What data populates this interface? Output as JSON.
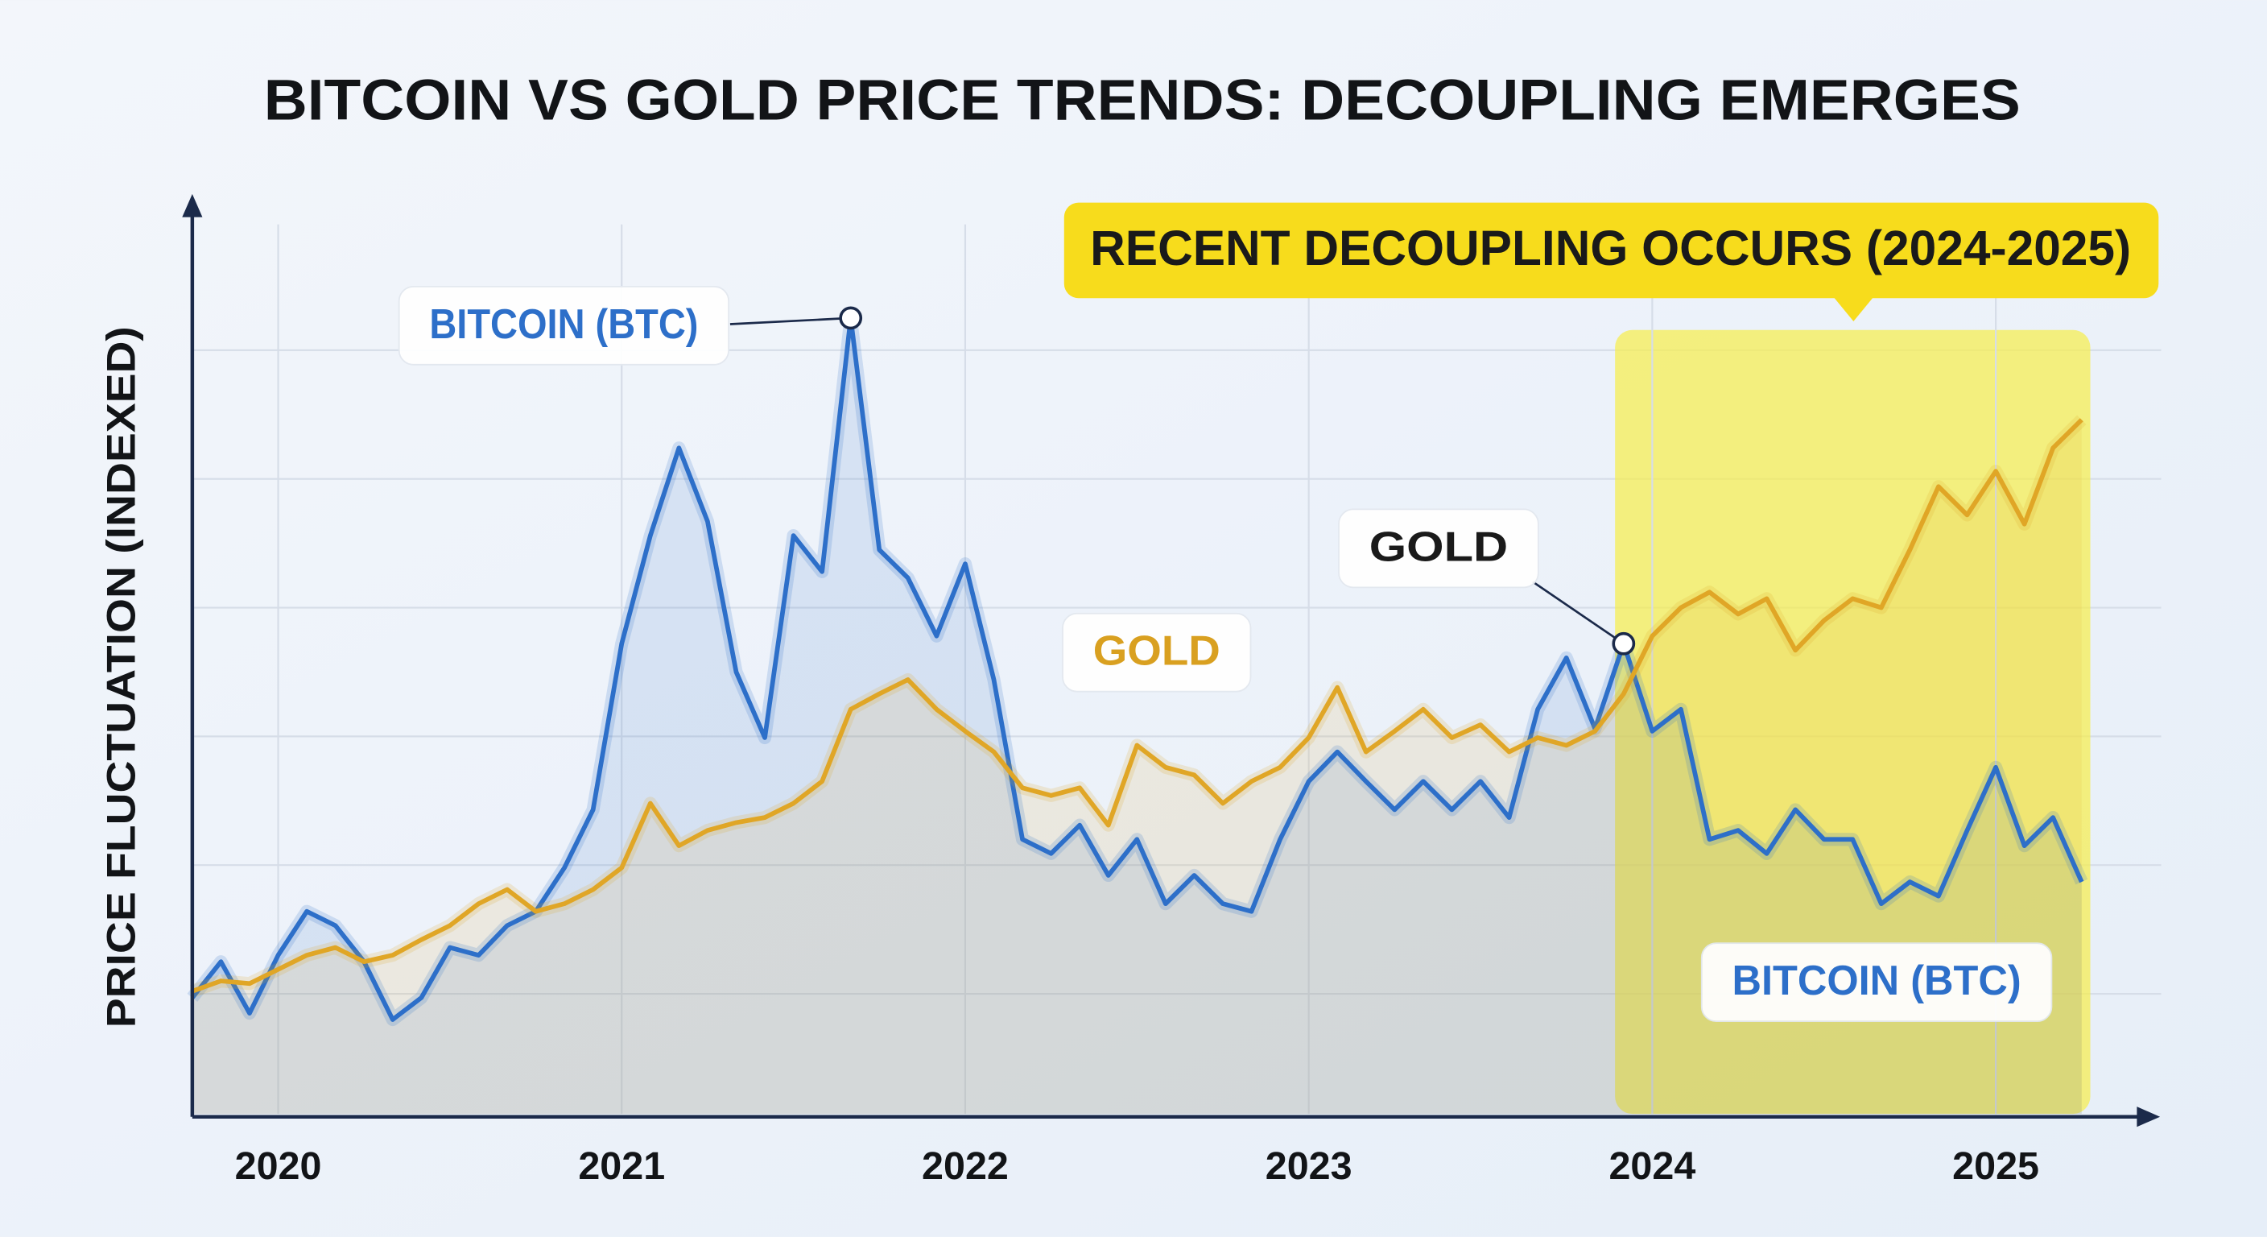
{
  "chart_data": {
    "type": "line",
    "title": "BITCOIN VS GOLD PRICE TRENDS: DECOUPLING EMERGES",
    "y_label": "PRICE FLUCTUATION (INDEXED)",
    "annotation": "RECENT DECOUPLING OCCURS (2024-2025)",
    "categories": [
      null,
      null,
      null,
      "2020",
      null,
      null,
      null,
      null,
      null,
      null,
      null,
      null,
      null,
      null,
      null,
      "2021",
      null,
      null,
      null,
      null,
      null,
      null,
      null,
      null,
      null,
      null,
      null,
      "2022",
      null,
      null,
      null,
      null,
      null,
      null,
      null,
      null,
      null,
      null,
      null,
      "2023",
      null,
      null,
      null,
      null,
      null,
      null,
      null,
      null,
      null,
      null,
      null,
      "2024",
      null,
      null,
      null,
      null,
      null,
      null,
      null,
      null,
      null,
      null,
      null,
      "2025",
      null,
      null,
      null
    ],
    "series": [
      {
        "name": "BITCOIN (BTC)",
        "color": "#2d6fc9",
        "values": [
          9.7,
          12.5,
          8.5,
          13,
          16.4,
          15.3,
          12.5,
          8,
          9.7,
          13.6,
          13,
          15.3,
          16.4,
          19.8,
          24.3,
          37.2,
          45.6,
          52.4,
          46.7,
          35,
          29.9,
          45.6,
          42.8,
          62.5,
          44.5,
          42.3,
          37.8,
          43.4,
          34.4,
          22,
          20.9,
          23.1,
          19.2,
          22,
          17,
          19.2,
          17,
          16.4,
          22,
          26.5,
          28.8,
          26.5,
          24.3,
          26.5,
          24.3,
          26.5,
          23.7,
          32.1,
          36.1,
          30.6,
          37.2,
          30.4,
          32.1,
          22,
          22.7,
          20.9,
          24.3,
          22,
          22,
          17,
          18.7,
          17.6,
          22.7,
          27.6,
          21.5,
          23.7,
          18.7
        ]
      },
      {
        "name": "GOLD",
        "color": "#e0a626",
        "values": [
          10.2,
          11,
          10.8,
          11.9,
          13,
          13.6,
          12.5,
          13,
          14.2,
          15.3,
          17,
          18.1,
          16.4,
          17,
          18.1,
          19.8,
          24.8,
          21.5,
          22.7,
          23.3,
          23.7,
          24.8,
          26.5,
          32.1,
          33.3,
          34.4,
          32.1,
          30.4,
          28.8,
          26,
          25.4,
          26,
          23.1,
          29.3,
          27.6,
          27,
          24.8,
          26.5,
          27.6,
          29.9,
          33.8,
          28.8,
          30.4,
          32.1,
          29.9,
          30.9,
          28.8,
          29.9,
          29.3,
          30.4,
          33.3,
          37.8,
          40,
          41.2,
          39.5,
          40.7,
          36.7,
          39,
          40.7,
          40,
          44.5,
          49.4,
          47.2,
          50.6,
          46.5,
          52.4,
          54.6
        ]
      }
    ],
    "ylim": [
      0,
      70
    ],
    "grid": true
  }
}
